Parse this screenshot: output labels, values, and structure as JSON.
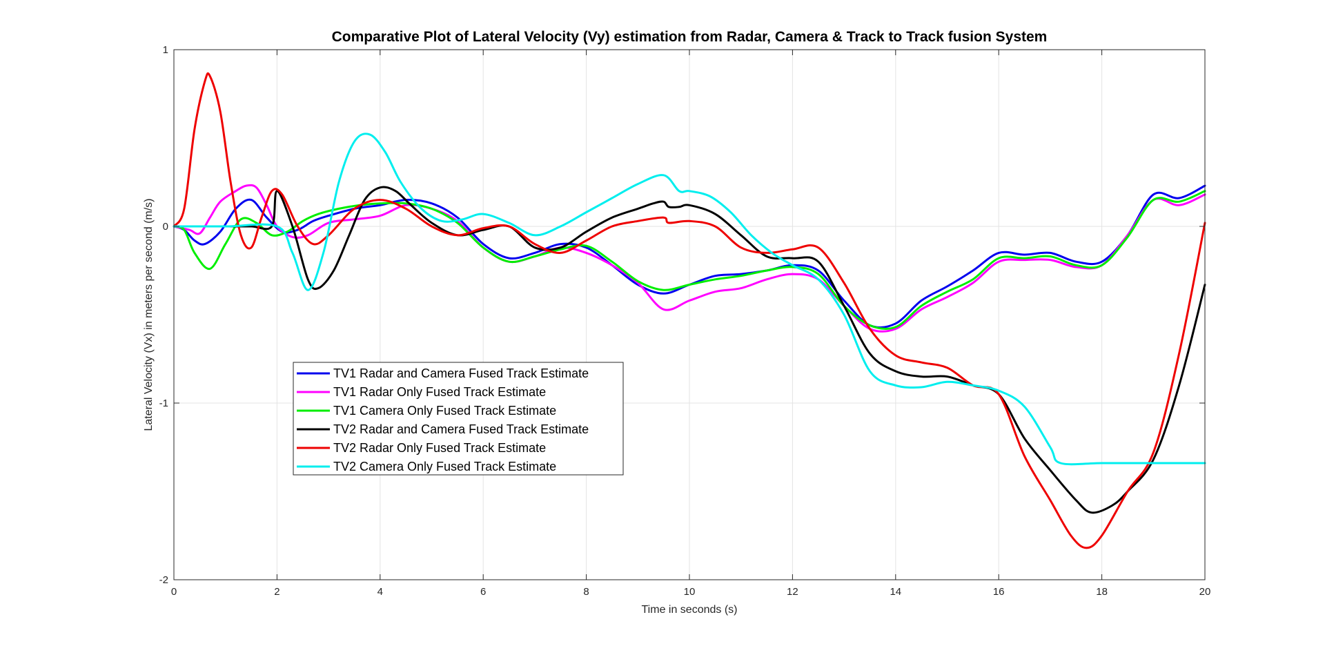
{
  "chart_data": {
    "type": "line",
    "title": "Comparative Plot of Lateral Velocity (Vy) estimation from Radar, Camera & Track to Track fusion System",
    "xlabel": "Time in seconds (s)",
    "ylabel": "Lateral Velocity (Vx) in meters per second (m/s)",
    "xlim": [
      0,
      20
    ],
    "ylim": [
      -2,
      1
    ],
    "xticks": [
      0,
      2,
      4,
      6,
      8,
      10,
      12,
      14,
      16,
      18,
      20
    ],
    "yticks": [
      -2,
      -1,
      0,
      1
    ],
    "xtick_labels": [
      "0",
      "2",
      "4",
      "6",
      "8",
      "10",
      "12",
      "14",
      "16",
      "18",
      "20"
    ],
    "ytick_labels": [
      "-2",
      "-1",
      "0",
      "1"
    ],
    "grid": true,
    "legend_position": "lower-left",
    "series": [
      {
        "name": "TV1 Radar and Camera Fused Track Estimate",
        "color": "#0000ee",
        "x": [
          0,
          0.2,
          0.4,
          0.6,
          0.9,
          1.2,
          1.5,
          1.8,
          2.1,
          2.4,
          2.7,
          3.0,
          3.5,
          4.0,
          4.5,
          5.0,
          5.5,
          6.0,
          6.5,
          7.0,
          7.5,
          8.0,
          8.5,
          9.0,
          9.5,
          10.0,
          10.5,
          11.0,
          11.5,
          12.0,
          12.5,
          13.0,
          13.5,
          14.0,
          14.5,
          15.0,
          15.5,
          16.0,
          16.5,
          17.0,
          17.5,
          18.0,
          18.5,
          19.0,
          19.5,
          20.0
        ],
        "y": [
          0,
          -0.02,
          -0.08,
          -0.1,
          -0.03,
          0.1,
          0.15,
          0.05,
          -0.03,
          -0.02,
          0.03,
          0.06,
          0.1,
          0.12,
          0.15,
          0.13,
          0.05,
          -0.1,
          -0.18,
          -0.15,
          -0.1,
          -0.12,
          -0.22,
          -0.33,
          -0.38,
          -0.33,
          -0.28,
          -0.27,
          -0.25,
          -0.22,
          -0.25,
          -0.42,
          -0.56,
          -0.55,
          -0.42,
          -0.34,
          -0.25,
          -0.15,
          -0.16,
          -0.15,
          -0.2,
          -0.2,
          -0.05,
          0.18,
          0.16,
          0.23
        ]
      },
      {
        "name": "TV1 Radar Only Fused Track Estimate",
        "color": "#ff00ff",
        "x": [
          0,
          0.3,
          0.5,
          0.7,
          0.9,
          1.2,
          1.4,
          1.6,
          1.8,
          2.0,
          2.3,
          2.6,
          3.0,
          3.5,
          4.0,
          4.5,
          5.0,
          5.5,
          6.0,
          6.5,
          7.0,
          7.5,
          8.0,
          8.5,
          9.0,
          9.5,
          10.0,
          10.5,
          11.0,
          11.5,
          12.0,
          12.5,
          13.0,
          13.5,
          14.0,
          14.5,
          15.0,
          15.5,
          16.0,
          16.5,
          17.0,
          17.5,
          18.0,
          18.5,
          19.0,
          19.5,
          20.0
        ],
        "y": [
          0,
          -0.02,
          -0.04,
          0.05,
          0.14,
          0.2,
          0.23,
          0.22,
          0.12,
          0.0,
          -0.06,
          -0.05,
          0.02,
          0.04,
          0.06,
          0.12,
          0.1,
          0.03,
          -0.12,
          -0.2,
          -0.17,
          -0.12,
          -0.15,
          -0.22,
          -0.32,
          -0.47,
          -0.42,
          -0.37,
          -0.35,
          -0.3,
          -0.27,
          -0.3,
          -0.45,
          -0.58,
          -0.58,
          -0.47,
          -0.4,
          -0.32,
          -0.2,
          -0.19,
          -0.19,
          -0.23,
          -0.22,
          -0.05,
          0.15,
          0.12,
          0.18
        ]
      },
      {
        "name": "TV1 Camera Only Fused Track Estimate",
        "color": "#00ee00",
        "x": [
          0,
          0.2,
          0.4,
          0.7,
          1.0,
          1.3,
          1.6,
          1.9,
          2.2,
          2.5,
          2.8,
          3.2,
          3.6,
          4.0,
          4.5,
          5.0,
          5.5,
          6.0,
          6.5,
          7.0,
          7.5,
          8.0,
          8.5,
          9.0,
          9.5,
          10.0,
          10.5,
          11.0,
          11.5,
          12.0,
          12.5,
          13.0,
          13.5,
          14.0,
          14.5,
          15.0,
          15.5,
          16.0,
          16.5,
          17.0,
          17.5,
          18.0,
          18.5,
          19.0,
          19.5,
          20.0
        ],
        "y": [
          0,
          -0.02,
          -0.15,
          -0.24,
          -0.1,
          0.04,
          0.02,
          -0.05,
          -0.03,
          0.03,
          0.07,
          0.1,
          0.12,
          0.13,
          0.13,
          0.1,
          0.02,
          -0.12,
          -0.2,
          -0.17,
          -0.13,
          -0.11,
          -0.2,
          -0.31,
          -0.36,
          -0.33,
          -0.3,
          -0.28,
          -0.25,
          -0.23,
          -0.27,
          -0.45,
          -0.56,
          -0.57,
          -0.45,
          -0.37,
          -0.3,
          -0.18,
          -0.18,
          -0.17,
          -0.22,
          -0.22,
          -0.06,
          0.15,
          0.14,
          0.2
        ]
      },
      {
        "name": "TV2 Radar and Camera Fused Track Estimate",
        "color": "#000000",
        "x": [
          0,
          0.5,
          1.0,
          1.5,
          1.9,
          2.0,
          2.3,
          2.6,
          2.8,
          3.1,
          3.4,
          3.7,
          4.0,
          4.3,
          4.6,
          5.0,
          5.5,
          6.0,
          6.5,
          7.0,
          7.5,
          8.0,
          8.5,
          9.0,
          9.3,
          9.5,
          9.6,
          9.8,
          10.0,
          10.5,
          11.0,
          11.5,
          12.0,
          12.5,
          13.0,
          13.5,
          14.0,
          14.5,
          15.0,
          15.5,
          16.0,
          16.5,
          17.0,
          17.5,
          17.8,
          18.2,
          18.5,
          19.0,
          19.5,
          20.0
        ],
        "y": [
          0,
          0,
          0,
          0,
          0,
          0.2,
          0.0,
          -0.3,
          -0.35,
          -0.25,
          -0.05,
          0.15,
          0.22,
          0.2,
          0.12,
          0.02,
          -0.05,
          -0.02,
          0.0,
          -0.12,
          -0.12,
          -0.03,
          0.05,
          0.1,
          0.13,
          0.14,
          0.11,
          0.11,
          0.12,
          0.07,
          -0.05,
          -0.17,
          -0.18,
          -0.2,
          -0.45,
          -0.72,
          -0.82,
          -0.85,
          -0.85,
          -0.9,
          -0.95,
          -1.2,
          -1.38,
          -1.55,
          -1.62,
          -1.58,
          -1.5,
          -1.32,
          -0.9,
          -0.33
        ]
      },
      {
        "name": "TV2 Radar Only Fused Track Estimate",
        "color": "#ee0000",
        "x": [
          0,
          0.2,
          0.4,
          0.6,
          0.7,
          0.9,
          1.1,
          1.3,
          1.5,
          1.7,
          1.9,
          2.1,
          2.4,
          2.7,
          3.0,
          3.5,
          4.0,
          4.5,
          5.0,
          5.5,
          6.0,
          6.5,
          7.0,
          7.5,
          8.0,
          8.5,
          9.0,
          9.5,
          9.6,
          10.0,
          10.5,
          11.0,
          11.5,
          12.0,
          12.5,
          13.0,
          13.5,
          14.0,
          14.5,
          15.0,
          15.5,
          16.0,
          16.5,
          17.0,
          17.4,
          17.7,
          18.0,
          18.5,
          19.0,
          19.5,
          20.0
        ],
        "y": [
          0,
          0.1,
          0.55,
          0.82,
          0.85,
          0.65,
          0.25,
          -0.05,
          -0.12,
          0.05,
          0.2,
          0.18,
          0.0,
          -0.1,
          -0.05,
          0.1,
          0.15,
          0.1,
          0.0,
          -0.05,
          -0.01,
          0.0,
          -0.1,
          -0.15,
          -0.08,
          0.0,
          0.03,
          0.05,
          0.02,
          0.03,
          0.0,
          -0.12,
          -0.15,
          -0.13,
          -0.12,
          -0.32,
          -0.58,
          -0.73,
          -0.77,
          -0.8,
          -0.9,
          -0.95,
          -1.3,
          -1.55,
          -1.75,
          -1.82,
          -1.75,
          -1.5,
          -1.28,
          -0.72,
          0.02
        ]
      },
      {
        "name": "TV2 Camera Only Fused Track Estimate",
        "color": "#00eeee",
        "x": [
          0,
          1.0,
          2.0,
          2.3,
          2.6,
          2.9,
          3.2,
          3.5,
          3.8,
          4.1,
          4.4,
          4.8,
          5.2,
          5.6,
          6.0,
          6.5,
          7.0,
          7.5,
          8.0,
          8.5,
          9.0,
          9.5,
          9.8,
          10.0,
          10.4,
          10.8,
          11.2,
          11.6,
          12.0,
          12.5,
          13.0,
          13.5,
          14.0,
          14.5,
          15.0,
          15.5,
          16.0,
          16.5,
          17.0,
          17.2,
          18.0,
          19.0,
          20.0
        ],
        "y": [
          0,
          0,
          0,
          -0.15,
          -0.36,
          -0.15,
          0.25,
          0.48,
          0.52,
          0.42,
          0.25,
          0.1,
          0.03,
          0.04,
          0.07,
          0.02,
          -0.05,
          0.0,
          0.08,
          0.16,
          0.24,
          0.29,
          0.2,
          0.2,
          0.17,
          0.08,
          -0.05,
          -0.15,
          -0.22,
          -0.3,
          -0.5,
          -0.82,
          -0.9,
          -0.91,
          -0.88,
          -0.9,
          -0.93,
          -1.02,
          -1.25,
          -1.34,
          -1.34,
          -1.34,
          -1.34
        ]
      }
    ]
  }
}
